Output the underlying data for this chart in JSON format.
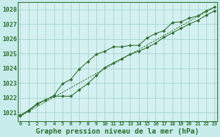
{
  "background_color": "#c8ecec",
  "plot_bg_color": "#d4f0f0",
  "grid_color": "#99cccc",
  "line_color": "#2d6e2d",
  "marker_color": "#2d6e2d",
  "xlabel": "Graphe pression niveau de la mer (hPa)",
  "xlabel_color": "#2d6e2d",
  "xlabel_fontsize": 7.5,
  "ylabel_fontsize": 6.5,
  "ytick_labels": [
    1021,
    1022,
    1023,
    1024,
    1025,
    1026,
    1027,
    1028
  ],
  "xtick_labels": [
    0,
    1,
    2,
    3,
    4,
    5,
    6,
    7,
    8,
    9,
    10,
    11,
    12,
    13,
    14,
    15,
    16,
    17,
    18,
    19,
    20,
    21,
    22,
    23
  ],
  "ylim": [
    1020.4,
    1028.5
  ],
  "xlim": [
    -0.3,
    23.3
  ],
  "series1": [
    1020.8,
    1021.15,
    1021.6,
    1021.85,
    1022.15,
    1022.95,
    1023.25,
    1023.95,
    1024.45,
    1024.95,
    1025.15,
    1025.45,
    1025.45,
    1025.55,
    1025.55,
    1026.05,
    1026.35,
    1026.55,
    1027.1,
    1027.15,
    1027.4,
    1027.55,
    1027.9,
    1028.15
  ],
  "series2": [
    1020.75,
    1021.1,
    1021.55,
    1021.85,
    1022.1,
    1022.1,
    1022.1,
    1022.55,
    1022.95,
    1023.5,
    1024.05,
    1024.35,
    1024.65,
    1024.95,
    1025.15,
    1025.4,
    1025.7,
    1026.1,
    1026.4,
    1026.7,
    1027.0,
    1027.25,
    1027.6,
    1027.9
  ],
  "series3_x": [
    0,
    23
  ],
  "series3_y": [
    1020.75,
    1028.15
  ]
}
